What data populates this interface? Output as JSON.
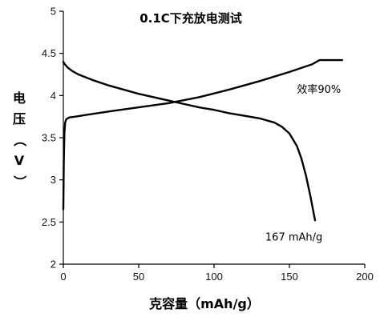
{
  "chart_data": {
    "type": "line",
    "title": "0.1C下充放电测试",
    "xlabel": "克容量（mAh/g）",
    "ylabel": "电压（V）",
    "xlim": [
      0,
      200
    ],
    "ylim": [
      2,
      5
    ],
    "x_ticks": [
      0,
      50,
      100,
      150,
      200
    ],
    "y_ticks": [
      2,
      2.5,
      3,
      3.5,
      4,
      4.5,
      5
    ],
    "grid": false,
    "series": [
      {
        "x": [
          0,
          0.3,
          0.7,
          1.2,
          2,
          4,
          8,
          15,
          30,
          50,
          70,
          90,
          110,
          130,
          150,
          165,
          170,
          180,
          185
        ],
        "y": [
          2.65,
          3.2,
          3.55,
          3.68,
          3.72,
          3.74,
          3.75,
          3.77,
          3.81,
          3.86,
          3.91,
          3.98,
          4.07,
          4.17,
          4.28,
          4.37,
          4.42,
          4.42,
          4.42
        ]
      },
      {
        "x": [
          0,
          1,
          3,
          6,
          10,
          20,
          30,
          40,
          50,
          60,
          70,
          80,
          90,
          100,
          110,
          120,
          130,
          140,
          145,
          150,
          155,
          158,
          161,
          164,
          167
        ],
        "y": [
          4.4,
          4.37,
          4.33,
          4.29,
          4.25,
          4.18,
          4.12,
          4.07,
          4.02,
          3.98,
          3.94,
          3.9,
          3.86,
          3.83,
          3.79,
          3.76,
          3.73,
          3.68,
          3.63,
          3.55,
          3.4,
          3.25,
          3.05,
          2.8,
          2.52
        ]
      }
    ],
    "annotations": [
      {
        "text": "效率90%",
        "x": 155,
        "y": 4.03
      },
      {
        "text": "167 mAh/g",
        "x": 134,
        "y": 2.28
      }
    ]
  }
}
